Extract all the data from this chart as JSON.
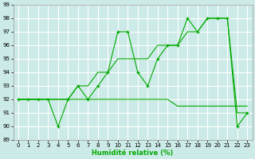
{
  "xlabel": "Humidité relative (%)",
  "xlim": [
    -0.5,
    23.5
  ],
  "ylim": [
    89,
    99
  ],
  "yticks": [
    89,
    90,
    91,
    92,
    93,
    94,
    95,
    96,
    97,
    98,
    99
  ],
  "xticks": [
    0,
    1,
    2,
    3,
    4,
    5,
    6,
    7,
    8,
    9,
    10,
    11,
    12,
    13,
    14,
    15,
    16,
    17,
    18,
    19,
    20,
    21,
    22,
    23
  ],
  "bg_color": "#cceae7",
  "grid_color": "#aadddd",
  "line_color": "#00aa00",
  "line1_x": [
    0,
    1,
    2,
    3,
    4,
    5,
    6,
    7,
    8,
    9,
    10,
    11,
    12,
    13,
    14,
    15,
    16,
    17,
    18,
    19,
    20,
    21,
    22,
    23
  ],
  "line1_y": [
    92,
    92,
    92,
    92,
    90,
    92,
    93,
    92,
    93,
    94,
    97,
    97,
    94,
    93,
    95,
    96,
    96,
    98,
    97,
    98,
    98,
    98,
    90,
    91
  ],
  "line2_x": [
    0,
    3,
    5,
    6,
    7,
    8,
    9,
    10,
    11,
    12,
    13,
    14,
    15,
    16,
    17,
    18,
    19,
    20,
    21,
    22,
    23
  ],
  "line2_y": [
    92,
    92,
    92,
    93,
    93,
    94,
    94,
    95,
    95,
    95,
    95,
    96,
    96,
    96,
    97,
    97,
    98,
    98,
    98,
    91,
    91
  ],
  "line3_x": [
    0,
    1,
    2,
    3,
    4,
    5,
    6,
    7,
    8,
    9,
    10,
    11,
    12,
    13,
    14,
    15,
    16,
    17,
    18,
    19,
    20,
    21,
    22,
    23
  ],
  "line3_y": [
    92,
    92,
    92,
    92,
    92,
    92,
    92,
    92,
    92,
    92,
    92,
    92,
    92,
    92,
    92,
    92,
    91.5,
    91.5,
    91.5,
    91.5,
    91.5,
    91.5,
    91.5,
    91.5
  ]
}
